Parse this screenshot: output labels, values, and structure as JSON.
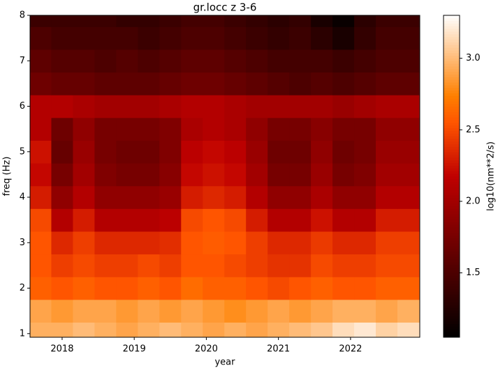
{
  "chart_data": {
    "type": "heatmap",
    "title": "gr.locc z 3-6",
    "x_label": "year",
    "y_label": "freq (Hz)",
    "colorbar_label": "log10(nm**2/s)",
    "colormap": "gist_heat",
    "x": [
      2017.7,
      2018.0,
      2018.3,
      2018.6,
      2018.9,
      2019.2,
      2019.5,
      2019.8,
      2020.1,
      2020.4,
      2020.7,
      2021.0,
      2021.3,
      2021.6,
      2021.9,
      2022.2,
      2022.5,
      2022.8
    ],
    "y": [
      1.0,
      1.5,
      2.0,
      2.5,
      3.0,
      3.5,
      4.0,
      4.5,
      5.0,
      5.5,
      6.0,
      6.5,
      7.0,
      7.5,
      8.0
    ],
    "values": [
      [
        2.95,
        2.95,
        3.0,
        2.95,
        2.9,
        2.95,
        3.0,
        2.95,
        2.9,
        2.95,
        2.9,
        2.95,
        3.0,
        3.05,
        3.15,
        3.2,
        3.1,
        3.15
      ],
      [
        2.9,
        2.85,
        2.9,
        2.9,
        2.85,
        2.9,
        2.85,
        2.9,
        2.85,
        2.8,
        2.85,
        2.9,
        2.85,
        2.9,
        2.95,
        2.95,
        2.9,
        2.95
      ],
      [
        2.6,
        2.55,
        2.6,
        2.55,
        2.55,
        2.6,
        2.55,
        2.65,
        2.6,
        2.6,
        2.55,
        2.5,
        2.55,
        2.6,
        2.55,
        2.55,
        2.6,
        2.6
      ],
      [
        2.55,
        2.45,
        2.5,
        2.45,
        2.45,
        2.5,
        2.45,
        2.55,
        2.55,
        2.5,
        2.45,
        2.4,
        2.4,
        2.5,
        2.45,
        2.45,
        2.5,
        2.5
      ],
      [
        2.55,
        2.35,
        2.45,
        2.35,
        2.35,
        2.35,
        2.38,
        2.55,
        2.58,
        2.55,
        2.45,
        2.35,
        2.35,
        2.43,
        2.35,
        2.35,
        2.45,
        2.45
      ],
      [
        2.5,
        2.1,
        2.3,
        2.1,
        2.1,
        2.1,
        2.15,
        2.5,
        2.55,
        2.5,
        2.3,
        2.1,
        2.1,
        2.25,
        2.1,
        2.1,
        2.3,
        2.3
      ],
      [
        2.3,
        1.9,
        2.1,
        1.9,
        1.9,
        1.9,
        1.95,
        2.3,
        2.35,
        2.3,
        2.1,
        1.9,
        1.9,
        2.05,
        1.9,
        1.9,
        2.1,
        2.1
      ],
      [
        2.2,
        1.75,
        2.0,
        1.8,
        1.75,
        1.75,
        1.85,
        2.2,
        2.25,
        2.2,
        2.0,
        1.75,
        1.75,
        1.95,
        1.75,
        1.8,
        2.0,
        2.0
      ],
      [
        2.25,
        1.65,
        1.95,
        1.75,
        1.7,
        1.7,
        1.8,
        2.15,
        2.2,
        2.15,
        1.95,
        1.7,
        1.7,
        1.9,
        1.7,
        1.75,
        1.95,
        1.95
      ],
      [
        2.1,
        1.7,
        1.9,
        1.75,
        1.75,
        1.75,
        1.8,
        2.05,
        2.1,
        2.05,
        1.9,
        1.75,
        1.75,
        1.85,
        1.75,
        1.75,
        1.9,
        1.9
      ],
      [
        2.1,
        2.1,
        2.05,
        2.0,
        2.0,
        2.0,
        2.05,
        2.1,
        2.1,
        2.05,
        2.0,
        2.0,
        2.0,
        2.0,
        1.95,
        2.0,
        2.05,
        2.05
      ],
      [
        1.7,
        1.65,
        1.65,
        1.6,
        1.6,
        1.6,
        1.65,
        1.7,
        1.7,
        1.65,
        1.6,
        1.55,
        1.5,
        1.55,
        1.5,
        1.55,
        1.6,
        1.6
      ],
      [
        1.6,
        1.55,
        1.55,
        1.5,
        1.55,
        1.5,
        1.55,
        1.6,
        1.6,
        1.55,
        1.5,
        1.45,
        1.45,
        1.45,
        1.4,
        1.45,
        1.5,
        1.5
      ],
      [
        1.5,
        1.45,
        1.45,
        1.45,
        1.45,
        1.4,
        1.45,
        1.5,
        1.5,
        1.45,
        1.4,
        1.35,
        1.4,
        1.3,
        1.2,
        1.35,
        1.45,
        1.45
      ],
      [
        1.4,
        1.4,
        1.4,
        1.4,
        1.35,
        1.35,
        1.4,
        1.45,
        1.45,
        1.4,
        1.35,
        1.3,
        1.35,
        1.2,
        1.1,
        1.3,
        1.4,
        1.4
      ]
    ],
    "xlim": [
      2017.555,
      2022.96
    ],
    "ylim": [
      0.92,
      8
    ],
    "xticks": [
      2018,
      2019,
      2020,
      2021,
      2022
    ],
    "yticks": [
      1,
      2,
      3,
      4,
      5,
      6,
      7,
      8
    ],
    "clim": [
      1.05,
      3.3
    ],
    "cticks": [
      1.5,
      {
        "value": 2,
        "label": "2.0"
      },
      2.5,
      {
        "value": 3,
        "label": "3.0"
      }
    ]
  }
}
